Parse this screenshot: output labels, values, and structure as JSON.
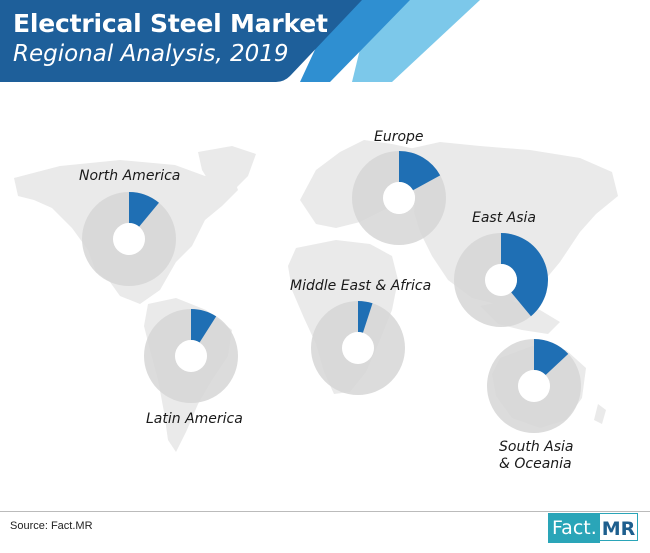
{
  "header": {
    "title": "Electrical Steel Market",
    "subtitle": "Regional Analysis, 2019"
  },
  "colors": {
    "header_dark": "#1e5f9a",
    "header_mid": "#2f8fd1",
    "header_light": "#7cc8ea",
    "share_fill": "#1f6fb4",
    "donut_rest": "#d6d6d6",
    "map_fill": "#eaeaea"
  },
  "chart_data": {
    "type": "pie",
    "variant": "donut-per-region",
    "title": "Electrical Steel Market Regional Analysis, 2019",
    "series": [
      {
        "name": "North America",
        "value": 11
      },
      {
        "name": "Europe",
        "value": 17
      },
      {
        "name": "East Asia",
        "value": 39
      },
      {
        "name": "Middle East & Africa",
        "value": 5
      },
      {
        "name": "Latin America",
        "value": 9
      },
      {
        "name": "South Asia & Oceania",
        "value": 13
      }
    ]
  },
  "labels": {
    "north_america": "North America",
    "europe": "Europe",
    "east_asia": "East Asia",
    "middle_east_africa": "Middle East & Africa",
    "latin_america": "Latin America",
    "south_asia_line1": "South Asia",
    "south_asia_line2": "& Oceania"
  },
  "footer": {
    "source": "Source: Fact.MR",
    "logo_fact": "Fact.",
    "logo_mr": "MR"
  }
}
